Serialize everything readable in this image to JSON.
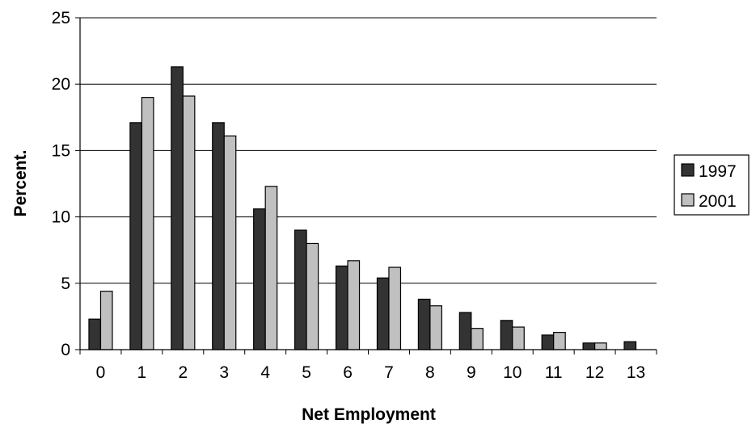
{
  "chart_data": {
    "type": "bar",
    "title": "",
    "xlabel": "Net Employment",
    "ylabel": "Percent.",
    "categories": [
      "0",
      "1",
      "2",
      "3",
      "4",
      "5",
      "6",
      "7",
      "8",
      "9",
      "10",
      "11",
      "12",
      "13"
    ],
    "ylim": [
      0,
      25
    ],
    "yticks": [
      "0",
      "5",
      "10",
      "15",
      "20",
      "25"
    ],
    "grid": true,
    "legend_position": "right",
    "series": [
      {
        "name": "1997",
        "color": "#333333",
        "values": [
          2.3,
          17.1,
          21.3,
          17.1,
          10.6,
          9.0,
          6.3,
          5.4,
          3.8,
          2.8,
          2.2,
          1.1,
          0.5,
          0.6
        ]
      },
      {
        "name": "2001",
        "color": "#c0c0c0",
        "values": [
          4.4,
          19.0,
          19.1,
          16.1,
          12.3,
          8.0,
          6.7,
          6.2,
          3.3,
          1.6,
          1.7,
          1.3,
          0.5,
          0
        ]
      }
    ]
  }
}
